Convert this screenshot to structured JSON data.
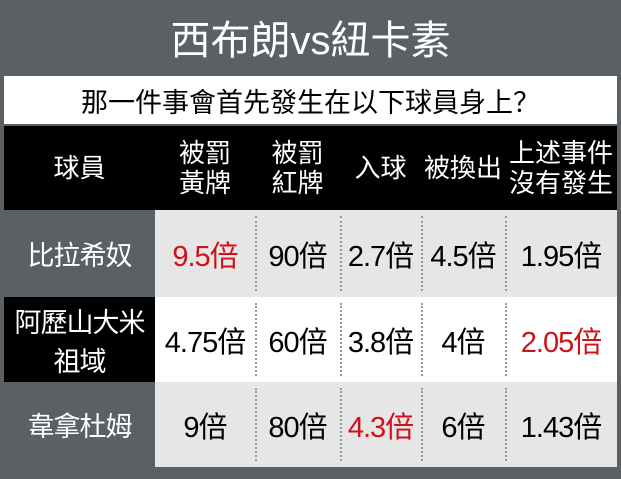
{
  "header": {
    "title": "西布朗vs紐卡素",
    "question": "那一件事會首先發生在以下球員身上？"
  },
  "table": {
    "columns": [
      [
        "球員"
      ],
      [
        "被罰",
        "黃牌"
      ],
      [
        "被罰",
        "紅牌"
      ],
      [
        "入球"
      ],
      [
        "被換出"
      ],
      [
        "上述事件",
        "沒有發生"
      ]
    ],
    "rows": [
      {
        "player": "比拉希奴",
        "odds": [
          "9.5倍",
          "90倍",
          "2.7倍",
          "4.5倍",
          "1.95倍"
        ],
        "highlight": 0
      },
      {
        "player": "阿歷山大米祖域",
        "odds": [
          "4.75倍",
          "60倍",
          "3.8倍",
          "4倍",
          "2.05倍"
        ],
        "highlight": 4
      },
      {
        "player": "韋拿杜姆",
        "odds": [
          "9倍",
          "80倍",
          "4.3倍",
          "6倍",
          "1.43倍"
        ],
        "highlight": 2
      }
    ],
    "highlight_color": "#d0101a"
  }
}
